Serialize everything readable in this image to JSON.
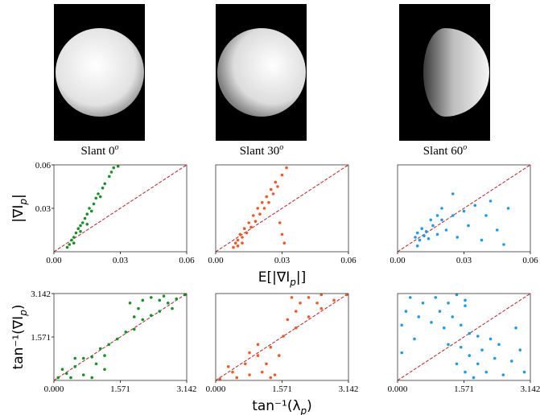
{
  "captions": [
    {
      "text": "Slant 0",
      "sup": "o"
    },
    {
      "text": "Slant 30",
      "sup": "o"
    },
    {
      "text": "Slant 60",
      "sup": "o"
    }
  ],
  "chart_data": [
    {
      "type": "scatter",
      "color": "#1a8f2a",
      "ylabel": {
        "text": "|∇I",
        "sub": "p",
        "tail": "|"
      },
      "x": [
        0.006,
        0.007,
        0.008,
        0.009,
        0.01,
        0.011,
        0.012,
        0.013,
        0.014,
        0.015,
        0.016,
        0.018,
        0.019,
        0.02,
        0.022,
        0.023,
        0.025,
        0.026,
        0.027,
        0.029,
        0.009,
        0.012,
        0.015,
        0.017,
        0.021
      ],
      "values": [
        0.003,
        0.005,
        0.008,
        0.01,
        0.013,
        0.016,
        0.018,
        0.02,
        0.023,
        0.026,
        0.03,
        0.033,
        0.037,
        0.04,
        0.044,
        0.047,
        0.052,
        0.055,
        0.058,
        0.059,
        0.006,
        0.014,
        0.019,
        0.028,
        0.038
      ],
      "xlim": [
        0,
        0.06
      ],
      "ylim": [
        0,
        0.06
      ],
      "xticks": [
        {
          "value": 0,
          "label": "0.00"
        },
        0.03,
        0.06
      ],
      "yticks": [
        0.03,
        0.06
      ]
    },
    {
      "type": "scatter",
      "color": "#f05a28",
      "xlabel": {
        "text": "E[|∇I",
        "sub": "p",
        "tail": "|]"
      },
      "x": [
        0.008,
        0.009,
        0.01,
        0.011,
        0.012,
        0.013,
        0.014,
        0.015,
        0.016,
        0.017,
        0.018,
        0.019,
        0.02,
        0.021,
        0.022,
        0.023,
        0.024,
        0.025,
        0.026,
        0.027,
        0.028,
        0.03,
        0.032,
        0.029,
        0.03,
        0.031,
        0.01,
        0.012
      ],
      "values": [
        0.003,
        0.006,
        0.008,
        0.012,
        0.01,
        0.016,
        0.013,
        0.02,
        0.017,
        0.025,
        0.021,
        0.03,
        0.026,
        0.034,
        0.03,
        0.038,
        0.034,
        0.043,
        0.04,
        0.048,
        0.045,
        0.053,
        0.058,
        0.02,
        0.012,
        0.006,
        0.004,
        0.006
      ],
      "xlim": [
        0,
        0.06
      ],
      "ylim": [
        0,
        0.06
      ],
      "xticks": [
        {
          "value": 0,
          "label": "0.00"
        },
        0.03,
        0.06
      ]
    },
    {
      "type": "scatter",
      "color": "#1e9be8",
      "x": [
        0.008,
        0.009,
        0.01,
        0.011,
        0.012,
        0.013,
        0.014,
        0.016,
        0.018,
        0.02,
        0.022,
        0.025,
        0.027,
        0.03,
        0.032,
        0.035,
        0.038,
        0.04,
        0.042,
        0.045,
        0.048,
        0.05,
        0.015,
        0.018,
        0.02,
        0.025,
        0.009
      ],
      "values": [
        0.01,
        0.013,
        0.008,
        0.016,
        0.011,
        0.014,
        0.009,
        0.018,
        0.012,
        0.022,
        0.015,
        0.025,
        0.01,
        0.028,
        0.018,
        0.032,
        0.008,
        0.025,
        0.035,
        0.015,
        0.005,
        0.03,
        0.022,
        0.025,
        0.03,
        0.04,
        0.004
      ],
      "xlim": [
        0,
        0.06
      ],
      "ylim": [
        0,
        0.06
      ],
      "xticks": [
        {
          "value": 0,
          "label": "0.00"
        },
        0.03,
        0.06
      ]
    },
    {
      "type": "scatter",
      "color": "#1a8f2a",
      "ylabel": {
        "text": "tan⁻¹(∇I",
        "sub": "p",
        "tail": ")"
      },
      "x": [
        0.1,
        0.3,
        0.5,
        0.7,
        0.9,
        1.1,
        1.3,
        1.5,
        1.7,
        1.9,
        2.1,
        2.3,
        2.5,
        2.7,
        2.9,
        3.1,
        0.4,
        0.7,
        1.0,
        0.9,
        1.2,
        2.0,
        2.3,
        2.1,
        1.9,
        1.8,
        2.6,
        1.2,
        0.2,
        0.5,
        2.8,
        2.5
      ],
      "values": [
        0.1,
        0.25,
        0.5,
        0.8,
        0.85,
        1.15,
        1.3,
        1.5,
        1.75,
        1.85,
        2.2,
        2.35,
        2.5,
        2.8,
        2.95,
        3.1,
        0.1,
        0.2,
        0.6,
        0.1,
        0.9,
        2.6,
        3.0,
        2.9,
        2.3,
        2.8,
        3.05,
        0.4,
        0.4,
        0.8,
        2.6,
        2.9
      ],
      "xlim": [
        0,
        3.142
      ],
      "ylim": [
        0,
        3.142
      ],
      "xticks": [
        {
          "value": 0,
          "label": "0.000"
        },
        1.571,
        3.142
      ],
      "yticks": [
        1.571,
        3.142
      ]
    },
    {
      "type": "scatter",
      "color": "#f05a28",
      "xlabel": {
        "text": "tan⁻¹(λ",
        "sub": "p",
        "tail": ")"
      },
      "x": [
        0.1,
        0.4,
        0.7,
        1.0,
        1.3,
        1.6,
        1.9,
        2.2,
        2.5,
        2.8,
        3.1,
        0.5,
        0.8,
        1.1,
        1.2,
        1.5,
        1.4,
        1.3,
        0.3,
        0.8,
        1.0,
        1.7,
        2.0,
        1.8,
        1.9,
        2.2,
        2.5,
        2.4
      ],
      "values": [
        0.05,
        0.3,
        0.6,
        0.9,
        1.2,
        1.6,
        1.9,
        2.3,
        2.6,
        2.9,
        3.1,
        0.1,
        0.2,
        0.3,
        0.6,
        0.9,
        0.2,
        0.1,
        0.5,
        1.0,
        1.3,
        2.2,
        2.8,
        3.0,
        2.5,
        3.0,
        3.1,
        2.8
      ],
      "xlim": [
        0,
        3.142
      ],
      "ylim": [
        0,
        3.142
      ],
      "xticks": [
        {
          "value": 0,
          "label": "0.000"
        },
        1.571,
        3.142
      ]
    },
    {
      "type": "scatter",
      "color": "#1e9be8",
      "x": [
        0.1,
        0.2,
        0.3,
        0.5,
        0.6,
        0.8,
        0.9,
        1.0,
        1.1,
        1.2,
        1.3,
        1.4,
        1.5,
        1.6,
        1.7,
        1.2,
        0.4,
        0.1,
        1.5,
        1.6,
        1.7,
        1.8,
        1.9,
        2.0,
        2.1,
        2.3,
        2.4,
        2.5,
        2.7,
        2.9,
        3.0,
        2.2,
        2.8,
        1.9,
        1.6,
        1.4
      ],
      "values": [
        2.0,
        2.5,
        3.0,
        2.3,
        2.8,
        2.1,
        3.0,
        2.5,
        1.9,
        2.8,
        2.3,
        3.1,
        2.0,
        2.7,
        1.7,
        1.3,
        1.5,
        1.0,
        1.2,
        0.3,
        0.9,
        0.1,
        0.6,
        1.1,
        0.3,
        0.8,
        1.3,
        0.2,
        0.7,
        1.1,
        0.3,
        1.5,
        1.9,
        1.6,
        2.9,
        0.6
      ],
      "xlim": [
        0,
        3.142
      ],
      "ylim": [
        0,
        3.142
      ],
      "xticks": [
        {
          "value": 0,
          "label": "0.000"
        },
        1.571,
        3.142
      ]
    }
  ]
}
